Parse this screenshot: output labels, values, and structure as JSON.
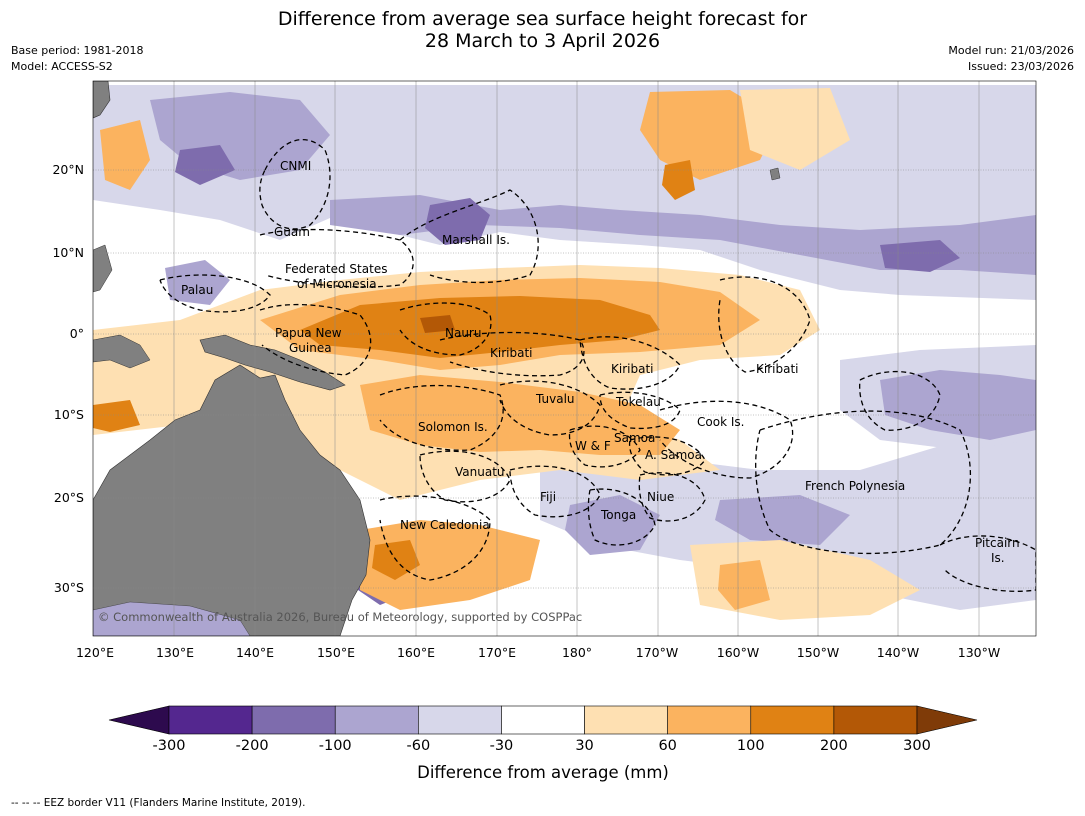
{
  "title": {
    "line1": "Difference from average sea surface height forecast for",
    "line2": "28 March to 3 April 2026"
  },
  "meta": {
    "base_period": "Base period: 1981-2018",
    "model": "Model: ACCESS-S2",
    "model_run": "Model run: 21/03/2026",
    "issued": "Issued: 23/03/2026"
  },
  "axes": {
    "lon_labels": [
      "120°E",
      "130°E",
      "140°E",
      "150°E",
      "160°E",
      "170°E",
      "180°",
      "170°W",
      "160°W",
      "150°W",
      "140°W",
      "130°W"
    ],
    "lat_labels": [
      "20°N",
      "10°N",
      "0°",
      "10°S",
      "20°S",
      "30°S"
    ]
  },
  "places": [
    {
      "name": "CNMI"
    },
    {
      "name": "Guam"
    },
    {
      "name": "Marshall Is."
    },
    {
      "name": "Federated States"
    },
    {
      "name": "of Micronesia"
    },
    {
      "name": "Palau"
    },
    {
      "name": "Papua New"
    },
    {
      "name": "Guinea"
    },
    {
      "name": "Nauru"
    },
    {
      "name": "Kiribati"
    },
    {
      "name": "Kiribati"
    },
    {
      "name": "Kiribati"
    },
    {
      "name": "Tuvalu"
    },
    {
      "name": "Tokelau"
    },
    {
      "name": "Solomon Is."
    },
    {
      "name": "Samoa"
    },
    {
      "name": "W & F"
    },
    {
      "name": "A. Samoa"
    },
    {
      "name": "Cook Is."
    },
    {
      "name": "Vanuatu"
    },
    {
      "name": "Fiji"
    },
    {
      "name": "Niue"
    },
    {
      "name": "Tonga"
    },
    {
      "name": "French Polynesia"
    },
    {
      "name": "New Caledonia"
    },
    {
      "name": "Pitcairn"
    },
    {
      "name": "Is."
    }
  ],
  "copyright": "© Commonwealth of Australia 2026, Bureau of Meteorology, supported by COSPPac",
  "colorbar": {
    "label": "Difference from average (mm)",
    "ticks": [
      "-300",
      "-200",
      "-100",
      "-60",
      "-30",
      "30",
      "60",
      "100",
      "200",
      "300"
    ],
    "colors": [
      "#2d0a4e",
      "#54278f",
      "#7e6cad",
      "#aca5d0",
      "#d7d7ea",
      "#ffffff",
      "#fee0b2",
      "#fbb35f",
      "#e08214",
      "#b35806",
      "#7f3b08"
    ]
  },
  "footnote": "--  --  -- EEZ border V11 (Flanders Marine Institute, 2019)."
}
